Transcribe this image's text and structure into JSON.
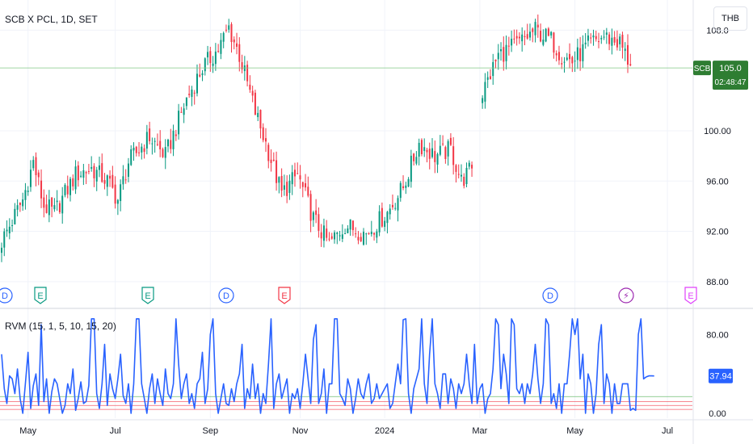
{
  "header": {
    "symbol_title": "SCB X PCL, 1D, SET",
    "currency": "THB"
  },
  "indicator": {
    "title": "RVM (15, 1, 5, 10, 15, 20)"
  },
  "colors": {
    "up": "#089981",
    "down": "#f23645",
    "rvm_line": "#2962ff",
    "badge_green": "#2e7d32",
    "grid": "#f0f3fa"
  },
  "chart_data": [
    {
      "type": "candlestick",
      "ylim": [
        86.0,
        110.4
      ],
      "y_ticks": [
        "108.0",
        "100.00",
        "96.00",
        "92.00",
        "88.00"
      ],
      "y_tick_values": [
        108,
        100,
        96,
        92,
        88
      ],
      "x_ticks": [
        "May",
        "Jul",
        "Sep",
        "Nov",
        "2024",
        "Mar",
        "May",
        "Jul"
      ],
      "last_price": {
        "label": "SCB",
        "value": "105.0",
        "countdown": "02:48:47",
        "price": 105.0
      },
      "series_segments": [
        {
          "name": "segment-1",
          "anchors": [
            [
              0,
              91.2
            ],
            [
              8,
              94.5
            ],
            [
              12,
              97.5
            ],
            [
              16,
              94.0
            ],
            [
              20,
              93.5
            ],
            [
              28,
              96.5
            ],
            [
              34,
              97.0
            ],
            [
              40,
              96.0
            ],
            [
              44,
              94.5
            ],
            [
              48,
              97.5
            ],
            [
              56,
              99.5
            ],
            [
              62,
              98.0
            ],
            [
              70,
              102.5
            ],
            [
              76,
              105.0
            ],
            [
              82,
              106.5
            ],
            [
              86,
              108.2
            ],
            [
              90,
              106.0
            ],
            [
              96,
              101.5
            ],
            [
              100,
              99.0
            ],
            [
              106,
              95.0
            ],
            [
              112,
              96.5
            ],
            [
              118,
              93.0
            ],
            [
              124,
              91.0
            ],
            [
              130,
              92.5
            ],
            [
              138,
              91.8
            ],
            [
              146,
              93.5
            ],
            [
              152,
              95.5
            ],
            [
              158,
              99.0
            ],
            [
              164,
              98.0
            ],
            [
              170,
              98.5
            ],
            [
              174,
              96.0
            ],
            [
              178,
              97.0
            ]
          ]
        },
        {
          "name": "segment-2",
          "anchors": [
            [
              182,
              103.0
            ],
            [
              188,
              106.0
            ],
            [
              196,
              107.0
            ],
            [
              202,
              108.0
            ],
            [
              208,
              107.2
            ],
            [
              212,
              106.0
            ],
            [
              216,
              105.5
            ],
            [
              222,
              106.8
            ],
            [
              228,
              107.5
            ],
            [
              234,
              107.0
            ],
            [
              238,
              105.2
            ]
          ]
        }
      ],
      "events": [
        {
          "letter": "D",
          "kind": "dividend",
          "color": "#2962ff"
        },
        {
          "letter": "E",
          "kind": "earnings",
          "color": "#089981"
        },
        {
          "letter": "E",
          "kind": "earnings",
          "color": "#089981"
        },
        {
          "letter": "D",
          "kind": "dividend",
          "color": "#2962ff"
        },
        {
          "letter": "E",
          "kind": "earnings",
          "color": "#f23645"
        },
        {
          "letter": "D",
          "kind": "dividend",
          "color": "#2962ff"
        },
        {
          "letter": "⚡",
          "kind": "split",
          "color": "#9c27b0"
        },
        {
          "letter": "E",
          "kind": "earnings",
          "color": "#e040fb"
        }
      ]
    },
    {
      "type": "line",
      "name": "RVM",
      "ylim": [
        0,
        100
      ],
      "y_ticks": [
        "80.00",
        "0.00"
      ],
      "y_tick_values": [
        80,
        0
      ],
      "last_value": "37.94",
      "last_value_num": 37.94,
      "levels": [
        {
          "value": 17,
          "color": "#4caf50"
        },
        {
          "value": 12,
          "color": "#f23645"
        },
        {
          "value": 8,
          "color": "#f23645"
        },
        {
          "value": 4,
          "color": "#f23645"
        }
      ],
      "values": [
        60,
        25,
        10,
        38,
        35,
        20,
        45,
        15,
        0,
        30,
        62,
        5,
        28,
        40,
        8,
        90,
        12,
        35,
        0,
        22,
        35,
        30,
        15,
        0,
        8,
        30,
        20,
        45,
        3,
        15,
        32,
        10,
        12,
        28,
        96,
        96,
        20,
        5,
        30,
        70,
        8,
        40,
        25,
        15,
        35,
        60,
        18,
        10,
        30,
        0,
        30,
        96,
        96,
        30,
        15,
        0,
        25,
        40,
        10,
        35,
        20,
        8,
        45,
        20,
        15,
        30,
        96,
        50,
        15,
        30,
        40,
        10,
        20,
        5,
        30,
        35,
        62,
        10,
        25,
        80,
        96,
        20,
        0,
        15,
        30,
        10,
        8,
        25,
        12,
        30,
        40,
        70,
        5,
        25,
        15,
        50,
        15,
        30,
        0,
        20,
        10,
        50,
        96,
        5,
        30,
        40,
        15,
        25,
        35,
        0,
        20,
        15,
        25,
        5,
        30,
        60,
        35,
        10,
        75,
        90,
        10,
        20,
        45,
        0,
        30,
        30,
        96,
        96,
        20,
        15,
        8,
        35,
        25,
        0,
        15,
        35,
        20,
        15,
        30,
        40,
        10,
        15,
        30,
        15,
        20,
        25,
        30,
        5,
        10,
        30,
        50,
        30,
        95,
        96,
        20,
        0,
        25,
        35,
        45,
        96,
        30,
        10,
        60,
        96,
        30,
        20,
        5,
        40,
        40,
        10,
        35,
        25,
        5,
        30,
        20,
        30,
        60,
        30,
        10,
        70,
        10,
        25,
        30,
        0,
        15,
        20,
        45,
        96,
        90,
        25,
        60,
        40,
        10,
        96,
        90,
        25,
        20,
        30,
        10,
        30,
        20,
        40,
        70,
        35,
        10,
        30,
        96,
        90,
        10,
        20,
        5,
        30,
        0,
        30,
        30,
        60,
        96,
        80,
        96,
        35,
        60,
        0,
        40,
        30,
        0,
        20,
        70,
        90,
        10,
        40,
        30,
        0,
        30,
        10,
        10,
        30,
        30,
        30,
        3,
        5,
        3,
        80,
        96,
        35,
        37,
        38,
        38,
        37.94
      ]
    }
  ]
}
